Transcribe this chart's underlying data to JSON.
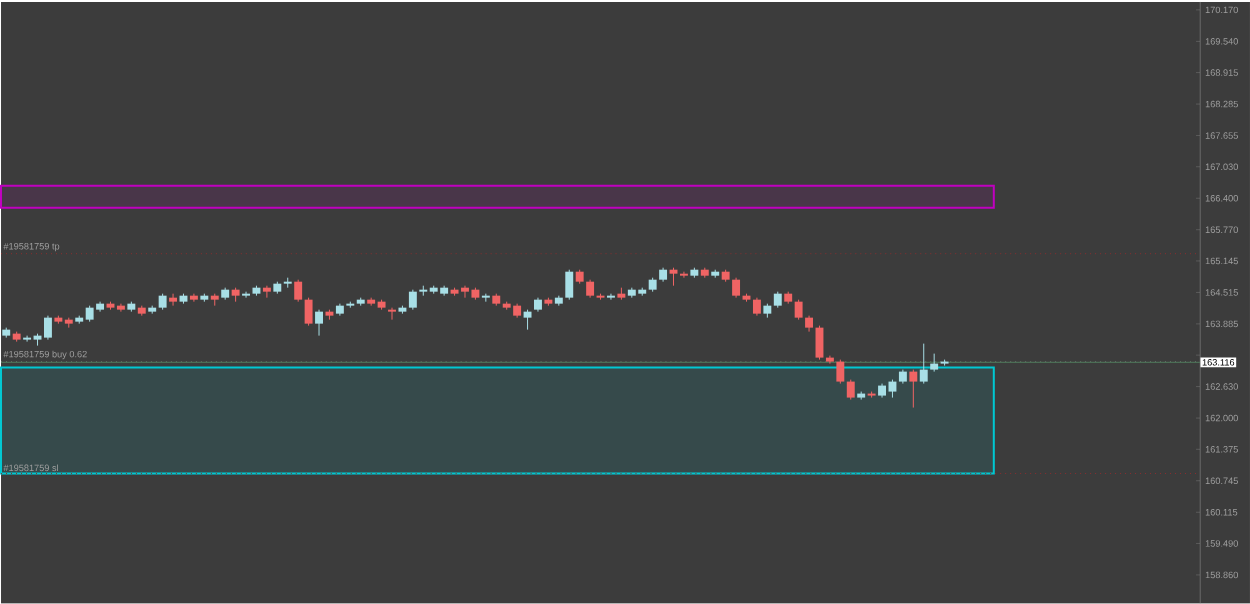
{
  "chart_data": {
    "type": "candlestick",
    "categories": [
      null,
      null,
      null,
      null,
      null,
      null,
      null,
      null,
      null,
      null,
      null,
      null,
      null,
      null,
      null,
      null,
      null,
      null,
      null,
      null,
      null,
      null,
      null,
      null,
      null,
      null,
      null,
      null,
      null,
      null,
      null,
      null,
      null,
      null,
      null,
      null,
      null,
      null,
      null,
      null,
      null,
      null,
      null,
      null,
      null,
      null,
      null,
      null,
      null,
      null,
      null,
      null,
      null,
      null,
      null,
      null,
      null,
      null,
      null,
      null,
      null,
      null,
      null,
      null,
      null,
      null,
      null,
      null,
      null,
      null,
      null,
      null,
      null,
      null,
      null,
      null,
      null,
      null,
      null,
      null,
      null,
      null,
      null,
      null,
      null,
      null,
      null,
      null,
      null,
      null,
      null,
      null,
      null,
      null,
      null,
      null,
      null,
      null,
      null,
      null,
      null,
      null,
      null,
      null,
      null,
      null,
      null,
      null,
      null,
      null,
      null,
      null,
      null,
      null,
      null
    ],
    "ohlc": [
      [
        163.65,
        163.81,
        163.61,
        163.77
      ],
      [
        163.69,
        163.73,
        163.53,
        163.57
      ],
      [
        163.57,
        163.65,
        163.53,
        163.61
      ],
      [
        163.57,
        163.69,
        163.45,
        163.65
      ],
      [
        163.61,
        164.05,
        163.57,
        164.01
      ],
      [
        164.01,
        164.05,
        163.89,
        163.93
      ],
      [
        163.97,
        164.01,
        163.81,
        163.89
      ],
      [
        163.93,
        164.05,
        163.89,
        164.01
      ],
      [
        163.97,
        164.25,
        163.93,
        164.21
      ],
      [
        164.17,
        164.33,
        164.13,
        164.29
      ],
      [
        164.29,
        164.33,
        164.17,
        164.21
      ],
      [
        164.25,
        164.29,
        164.13,
        164.17
      ],
      [
        164.17,
        164.33,
        164.13,
        164.29
      ],
      [
        164.21,
        164.25,
        164.05,
        164.09
      ],
      [
        164.13,
        164.25,
        164.09,
        164.21
      ],
      [
        164.21,
        164.49,
        164.17,
        164.45
      ],
      [
        164.41,
        164.49,
        164.25,
        164.33
      ],
      [
        164.33,
        164.49,
        164.29,
        164.45
      ],
      [
        164.45,
        164.49,
        164.33,
        164.37
      ],
      [
        164.37,
        164.49,
        164.33,
        164.45
      ],
      [
        164.45,
        164.49,
        164.25,
        164.37
      ],
      [
        164.41,
        164.61,
        164.37,
        164.57
      ],
      [
        164.57,
        164.61,
        164.33,
        164.45
      ],
      [
        164.45,
        164.53,
        164.41,
        164.49
      ],
      [
        164.49,
        164.65,
        164.45,
        164.61
      ],
      [
        164.61,
        164.65,
        164.41,
        164.53
      ],
      [
        164.53,
        164.73,
        164.49,
        164.69
      ],
      [
        164.69,
        164.81,
        164.61,
        164.73
      ],
      [
        164.73,
        164.77,
        164.33,
        164.37
      ],
      [
        164.37,
        164.41,
        163.85,
        163.89
      ],
      [
        163.89,
        164.17,
        163.65,
        164.13
      ],
      [
        164.13,
        164.17,
        163.97,
        164.05
      ],
      [
        164.09,
        164.29,
        164.05,
        164.25
      ],
      [
        164.25,
        164.33,
        164.21,
        164.29
      ],
      [
        164.29,
        164.41,
        164.25,
        164.37
      ],
      [
        164.37,
        164.41,
        164.25,
        164.29
      ],
      [
        164.33,
        164.37,
        164.17,
        164.21
      ],
      [
        164.17,
        164.21,
        163.97,
        164.13
      ],
      [
        164.13,
        164.25,
        164.09,
        164.21
      ],
      [
        164.21,
        164.57,
        164.17,
        164.53
      ],
      [
        164.53,
        164.65,
        164.45,
        164.57
      ],
      [
        164.53,
        164.65,
        164.49,
        164.61
      ],
      [
        164.49,
        164.65,
        164.45,
        164.61
      ],
      [
        164.57,
        164.61,
        164.45,
        164.49
      ],
      [
        164.61,
        164.65,
        164.41,
        164.53
      ],
      [
        164.57,
        164.61,
        164.37,
        164.41
      ],
      [
        164.41,
        164.49,
        164.33,
        164.45
      ],
      [
        164.45,
        164.49,
        164.25,
        164.29
      ],
      [
        164.29,
        164.33,
        164.17,
        164.21
      ],
      [
        164.25,
        164.29,
        164.01,
        164.05
      ],
      [
        164.01,
        164.17,
        163.77,
        164.13
      ],
      [
        164.17,
        164.41,
        164.13,
        164.37
      ],
      [
        164.37,
        164.41,
        164.25,
        164.29
      ],
      [
        164.29,
        164.45,
        164.25,
        164.41
      ],
      [
        164.41,
        164.97,
        164.37,
        164.93
      ],
      [
        164.93,
        164.97,
        164.69,
        164.73
      ],
      [
        164.73,
        164.77,
        164.41,
        164.45
      ],
      [
        164.45,
        164.49,
        164.37,
        164.41
      ],
      [
        164.41,
        164.49,
        164.37,
        164.45
      ],
      [
        164.49,
        164.61,
        164.37,
        164.41
      ],
      [
        164.45,
        164.61,
        164.41,
        164.57
      ],
      [
        164.49,
        164.61,
        164.45,
        164.57
      ],
      [
        164.57,
        164.81,
        164.53,
        164.77
      ],
      [
        164.77,
        165.01,
        164.73,
        164.97
      ],
      [
        164.97,
        165.01,
        164.65,
        164.89
      ],
      [
        164.89,
        164.93,
        164.81,
        164.85
      ],
      [
        164.85,
        165.01,
        164.81,
        164.97
      ],
      [
        164.97,
        165.01,
        164.81,
        164.85
      ],
      [
        164.85,
        164.97,
        164.81,
        164.93
      ],
      [
        164.93,
        164.97,
        164.73,
        164.77
      ],
      [
        164.77,
        164.81,
        164.41,
        164.45
      ],
      [
        164.45,
        164.49,
        164.33,
        164.37
      ],
      [
        164.37,
        164.41,
        164.05,
        164.09
      ],
      [
        164.09,
        164.29,
        164.01,
        164.25
      ],
      [
        164.25,
        164.53,
        164.21,
        164.49
      ],
      [
        164.49,
        164.53,
        164.29,
        164.33
      ],
      [
        164.33,
        164.37,
        163.97,
        164.01
      ],
      [
        164.01,
        164.05,
        163.73,
        163.81
      ],
      [
        163.81,
        163.85,
        163.17,
        163.21
      ],
      [
        163.21,
        163.25,
        163.09,
        163.13
      ],
      [
        163.13,
        163.17,
        162.69,
        162.73
      ],
      [
        162.73,
        162.77,
        162.37,
        162.41
      ],
      [
        162.41,
        162.53,
        162.37,
        162.49
      ],
      [
        162.49,
        162.53,
        162.41,
        162.45
      ],
      [
        162.45,
        162.69,
        162.41,
        162.65
      ],
      [
        162.53,
        162.77,
        162.41,
        162.73
      ],
      [
        162.73,
        162.97,
        162.69,
        162.93
      ],
      [
        162.93,
        162.97,
        162.21,
        162.73
      ],
      [
        162.73,
        163.49,
        162.69,
        162.97
      ],
      [
        162.97,
        163.29,
        162.93,
        163.09
      ],
      [
        163.09,
        163.17,
        163.05,
        163.13
      ],
      null,
      null,
      null,
      null,
      null,
      null,
      null,
      null,
      null,
      null,
      null,
      null,
      null,
      null,
      null,
      null,
      null,
      null,
      null,
      null,
      null,
      null,
      null,
      null
    ],
    "ylim": [
      158.29,
      170.33
    ],
    "yticks": [
      {
        "value": 158.86,
        "label": "158.860"
      },
      {
        "value": 159.49,
        "label": "159.490"
      },
      {
        "value": 160.115,
        "label": "160.115"
      },
      {
        "value": 160.745,
        "label": "160.745"
      },
      {
        "value": 161.375,
        "label": "161.375"
      },
      {
        "value": 162.0,
        "label": "162.000"
      },
      {
        "value": 162.63,
        "label": "162.630"
      },
      {
        "value": 163.26,
        "label": null
      },
      {
        "value": 163.885,
        "label": "163.885"
      },
      {
        "value": 164.515,
        "label": "164.515"
      },
      {
        "value": 165.145,
        "label": "165.145"
      },
      {
        "value": 165.77,
        "label": "165.770"
      },
      {
        "value": 166.4,
        "label": "166.400"
      },
      {
        "value": 167.03,
        "label": "167.030"
      },
      {
        "value": 167.655,
        "label": "167.655"
      },
      {
        "value": 168.285,
        "label": "168.285"
      },
      {
        "value": 168.915,
        "label": "168.915"
      },
      {
        "value": 169.54,
        "label": "169.540"
      },
      {
        "value": 170.17,
        "label": "170.170"
      }
    ],
    "tick_labels": "y",
    "grid": false,
    "ref_lines": [
      {
        "axis": "y",
        "value": 165.29,
        "label": "#19581759 tp",
        "color": "#8b2e2e",
        "line_style": "dotted"
      },
      {
        "axis": "y",
        "value": 163.13,
        "label": "#19581759 buy 0.62",
        "color": "#66706a",
        "line_style": "dotted"
      },
      {
        "axis": "y",
        "value": 160.89,
        "label": "#19581759 sl",
        "color": "#8b2e2e",
        "line_style": "dotted"
      },
      {
        "axis": "y",
        "value": 163.116,
        "label": "163.116",
        "color": "#4f7a5c",
        "line_style": "solid"
      }
    ],
    "bands": [
      {
        "axis": "y",
        "from": 166.21,
        "to": 166.65,
        "color": "#c000c0"
      },
      {
        "axis": "y",
        "from": 160.89,
        "to": 163.01,
        "color": "#00c8d2"
      }
    ]
  }
}
